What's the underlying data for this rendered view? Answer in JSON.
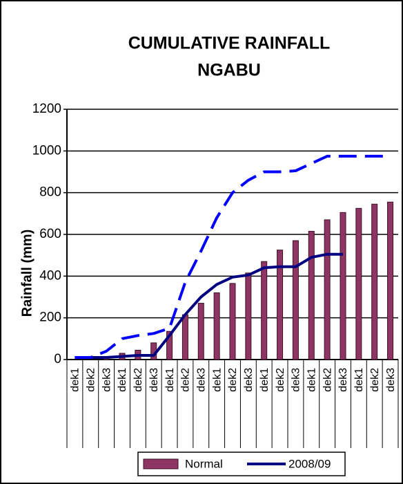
{
  "chart_data": {
    "type": "bar_line",
    "title": [
      "CUMULATIVE RAINFALL",
      "NGABU"
    ],
    "y_label": "Rainfall (mm)",
    "categories": [
      "dek1",
      "dek2",
      "dek3",
      "dek1",
      "dek2",
      "dek3",
      "dek1",
      "dek2",
      "dek3",
      "dek1",
      "dek2",
      "dek3",
      "dek1",
      "dek2",
      "dek3",
      "dek1",
      "dek2",
      "dek3",
      "dek1",
      "dek2",
      "dek3"
    ],
    "series": [
      {
        "name": "Normal",
        "type": "bar",
        "color": "#8e3563",
        "values": [
          0,
          0,
          5,
          30,
          45,
          80,
          135,
          215,
          270,
          320,
          365,
          415,
          470,
          525,
          570,
          615,
          670,
          705,
          725,
          745,
          755
        ]
      },
      {
        "name": "2008/09",
        "type": "line",
        "color": "#000080",
        "dash": false,
        "values": [
          10,
          10,
          10,
          15,
          20,
          20,
          115,
          215,
          300,
          360,
          395,
          405,
          440,
          445,
          445,
          490,
          505,
          505,
          null,
          null,
          null
        ]
      },
      {
        "type": "line",
        "color": "#0000ff",
        "dash": true,
        "values": [
          10,
          10,
          40,
          100,
          115,
          125,
          150,
          370,
          520,
          680,
          800,
          860,
          900,
          900,
          905,
          940,
          975,
          975,
          975,
          975,
          975
        ]
      }
    ],
    "ylim": [
      0,
      1200
    ],
    "yticks": [
      0,
      200,
      400,
      600,
      800,
      1000,
      1200
    ],
    "grid": true,
    "legend": "bottom"
  }
}
